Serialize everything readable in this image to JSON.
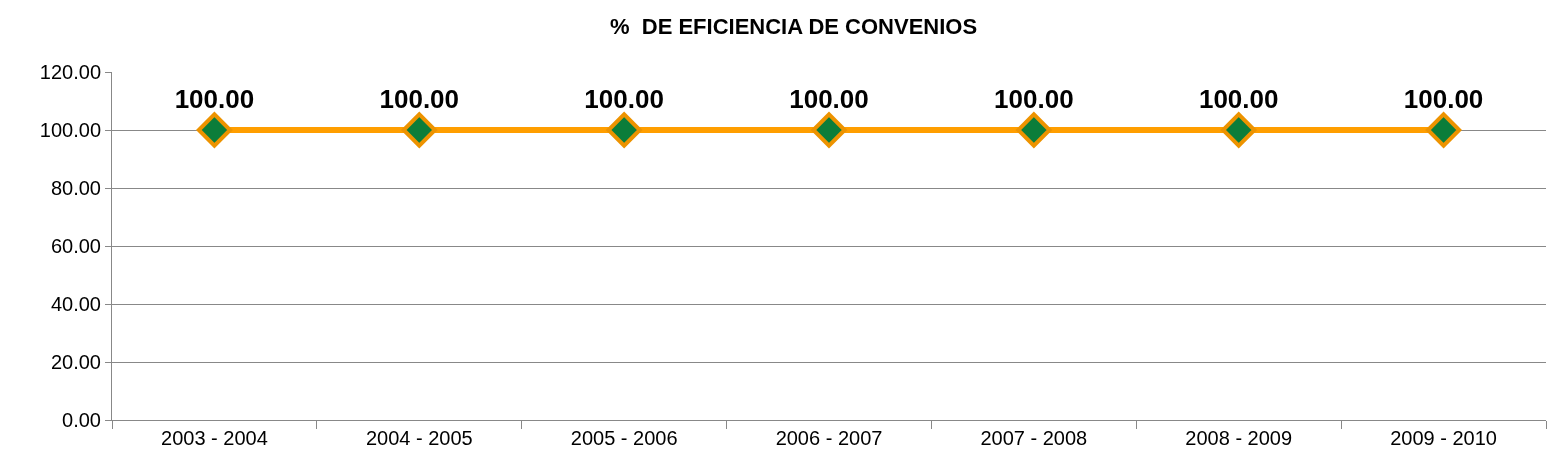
{
  "chart_data": {
    "type": "line",
    "title": "%  DE EFICIENCIA DE CONVENIOS",
    "categories": [
      "2003 - 2004",
      "2004 - 2005",
      "2005 - 2006",
      "2006 - 2007",
      "2007 - 2008",
      "2008 - 2009",
      "2009 - 2010"
    ],
    "series": [
      {
        "color": "#ff9e00",
        "colors": [
          "#0b7d3a",
          "#0b7d3a",
          "#0b7d3a",
          "#0b7d3a",
          "#0b7d3a",
          "#0b7d3a",
          "#0b7d3a"
        ],
        "values": [
          100,
          100,
          100,
          100,
          100,
          100,
          100
        ],
        "value_labels": [
          "100.00",
          "100.00",
          "100.00",
          "100.00",
          "100.00",
          "100.00",
          "100.00"
        ]
      }
    ],
    "ylim": [
      0,
      120
    ],
    "yticks": [
      {
        "value": 0,
        "label": "0.00"
      },
      {
        "value": 20,
        "label": "20.00"
      },
      {
        "value": 40,
        "label": "40.00"
      },
      {
        "value": 60,
        "label": "60.00"
      },
      {
        "value": 80,
        "label": "80.00"
      },
      {
        "value": 100,
        "label": "100.00"
      },
      {
        "value": 120,
        "label": "120.00"
      }
    ],
    "grid": "y",
    "marker": "diamond",
    "line_style": "solid"
  }
}
